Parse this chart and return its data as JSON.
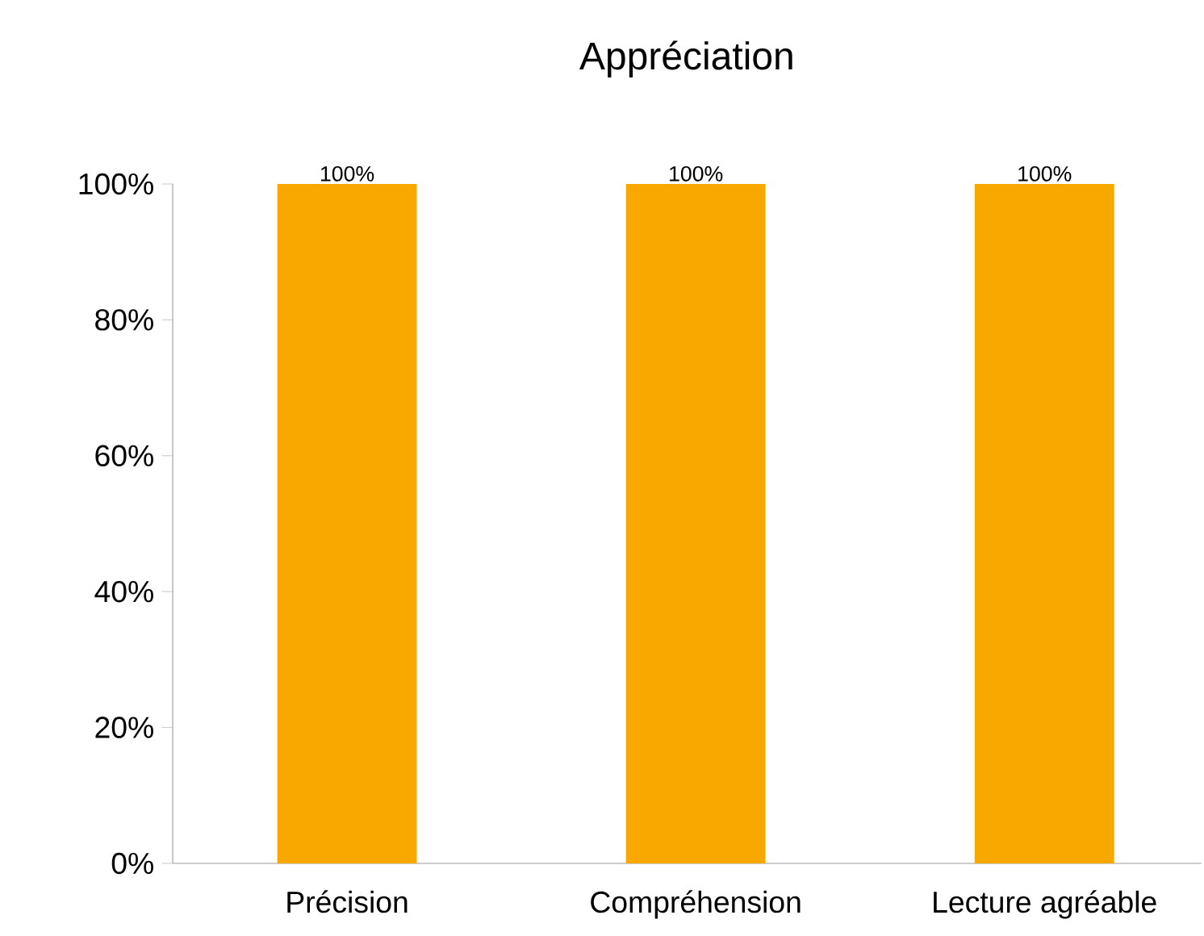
{
  "chart_data": {
    "type": "bar",
    "title": "Appréciation",
    "categories": [
      "Précision",
      "Compréhension",
      "Lecture agréable"
    ],
    "values": [
      100,
      100,
      100
    ],
    "value_labels": [
      "100%",
      "100%",
      "100%"
    ],
    "color": "#f9a800",
    "ylim": [
      0,
      100
    ],
    "yticks": [
      {
        "value": 0,
        "label": "0%"
      },
      {
        "value": 20,
        "label": "20%"
      },
      {
        "value": 40,
        "label": "40%"
      },
      {
        "value": 60,
        "label": "60%"
      },
      {
        "value": 80,
        "label": "80%"
      },
      {
        "value": 100,
        "label": "100%"
      }
    ]
  }
}
